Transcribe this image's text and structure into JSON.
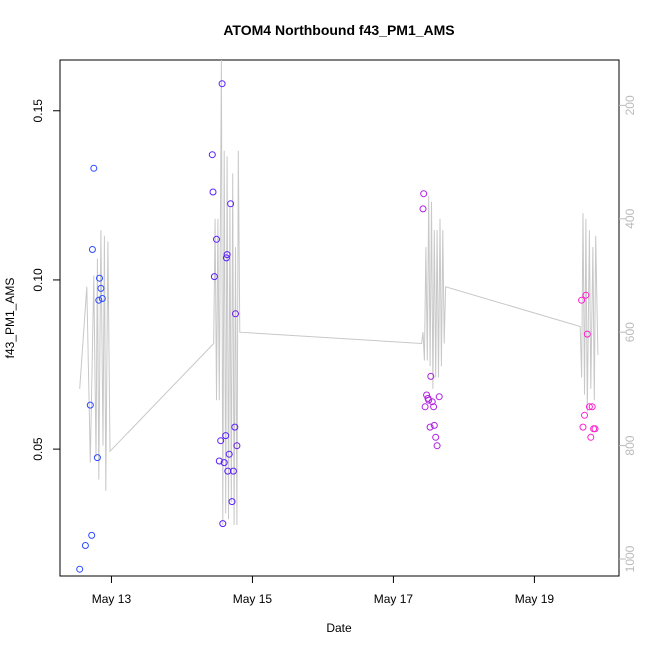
{
  "chart_data": {
    "type": "scatter",
    "title": "ATOM4 Northbound f43_PM1_AMS",
    "xlabel": "Date",
    "ylabel": "f43_PM1_AMS",
    "x_unit": "days since May 13 00:00",
    "xlim": [
      -0.73,
      7.2
    ],
    "ylim": [
      0.0125,
      0.165
    ],
    "x_ticks": [
      {
        "value": 0,
        "label": "May 13"
      },
      {
        "value": 2,
        "label": "May 15"
      },
      {
        "value": 4,
        "label": "May 17"
      },
      {
        "value": 6,
        "label": "May 19"
      }
    ],
    "y_ticks": [
      {
        "value": 0.05,
        "label": "0.05"
      },
      {
        "value": 0.1,
        "label": "0.10"
      },
      {
        "value": 0.15,
        "label": "0.15"
      }
    ],
    "right_axis": {
      "label_color": "#bbbbbb",
      "ylim": [
        1030,
        120
      ],
      "ticks": [
        {
          "value": 200,
          "label": "200"
        },
        {
          "value": 400,
          "label": "400"
        },
        {
          "value": 600,
          "label": "600"
        },
        {
          "value": 800,
          "label": "800"
        },
        {
          "value": 1000,
          "label": "1000"
        }
      ]
    },
    "altitude_line": {
      "color": "#c8c8c8",
      "x": [
        -0.45,
        -0.35,
        -0.3,
        -0.25,
        -0.22,
        -0.2,
        -0.18,
        -0.15,
        -0.12,
        -0.1,
        -0.08,
        -0.05,
        -0.02,
        1.45,
        1.47,
        1.49,
        1.51,
        1.53,
        1.56,
        1.58,
        1.6,
        1.62,
        1.64,
        1.66,
        1.68,
        1.7,
        1.72,
        1.74,
        1.76,
        1.78,
        1.8,
        1.82,
        4.4,
        4.42,
        4.44,
        4.46,
        4.48,
        4.5,
        4.52,
        4.54,
        4.56,
        4.58,
        4.6,
        4.62,
        4.64,
        4.66,
        4.68,
        4.7,
        4.72,
        4.74,
        6.65,
        6.67,
        6.69,
        6.71,
        6.73,
        6.75,
        6.78,
        6.8,
        6.83,
        6.85,
        6.87,
        6.9
      ],
      "y": [
        700,
        520,
        830,
        500,
        820,
        470,
        860,
        420,
        800,
        430,
        880,
        440,
        810,
        620,
        400,
        720,
        400,
        720,
        120,
        940,
        280,
        920,
        290,
        930,
        380,
        900,
        320,
        940,
        450,
        940,
        280,
        600,
        620,
        600,
        650,
        450,
        650,
        360,
        660,
        370,
        700,
        420,
        680,
        420,
        680,
        400,
        660,
        420,
        620,
        520,
        590,
        680,
        390,
        710,
        400,
        740,
        420,
        700,
        450,
        720,
        430,
        640
      ]
    },
    "series": [
      {
        "name": "points_blue",
        "color": "#2e4bff",
        "x": [
          -0.45,
          -0.37,
          -0.28,
          -0.3,
          -0.25,
          -0.27,
          -0.2,
          -0.18,
          -0.15,
          -0.17,
          -0.13
        ],
        "y": [
          0.0145,
          0.0215,
          0.0245,
          0.063,
          0.133,
          0.109,
          0.0475,
          0.094,
          0.0975,
          0.1005,
          0.0945
        ]
      },
      {
        "name": "points_violet",
        "color": "#5a1fff",
        "x": [
          1.43,
          1.44,
          1.46,
          1.49,
          1.53,
          1.55,
          1.57,
          1.58,
          1.6,
          1.62,
          1.63,
          1.64,
          1.65,
          1.67,
          1.69,
          1.71,
          1.73,
          1.75
        ],
        "y": [
          0.137,
          0.126,
          0.101,
          0.112,
          0.0465,
          0.0525,
          0.158,
          0.028,
          0.046,
          0.054,
          0.1065,
          0.1075,
          0.0435,
          0.0485,
          0.1225,
          0.0345,
          0.0435,
          0.0565
        ]
      },
      {
        "name": "points_violet_2",
        "color": "#6a1fe0",
        "x": [
          1.76,
          1.78
        ],
        "y": [
          0.09,
          0.051
        ]
      },
      {
        "name": "points_purple",
        "color": "#b020e0",
        "x": [
          4.42,
          4.43,
          4.45,
          4.47,
          4.49,
          4.5,
          4.52,
          4.53,
          4.55,
          4.57,
          4.58,
          4.6,
          4.62,
          4.65
        ],
        "y": [
          0.121,
          0.1255,
          0.0625,
          0.066,
          0.065,
          0.0645,
          0.0565,
          0.0715,
          0.064,
          0.0625,
          0.057,
          0.0535,
          0.051,
          0.0655
        ]
      },
      {
        "name": "points_magenta",
        "color": "#ff20d0",
        "x": [
          6.67,
          6.69,
          6.71,
          6.73,
          6.75,
          6.78,
          6.8,
          6.82,
          6.84,
          6.86
        ],
        "y": [
          0.094,
          0.0565,
          0.06,
          0.0955,
          0.084,
          0.0625,
          0.0535,
          0.0625,
          0.056,
          0.056
        ]
      }
    ]
  }
}
